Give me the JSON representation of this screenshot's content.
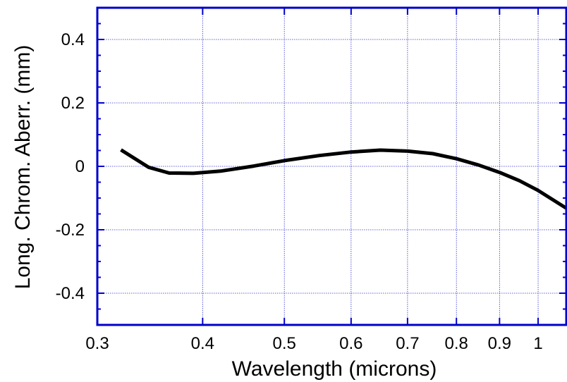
{
  "chart_data": {
    "type": "line",
    "xlabel": "Wavelength (microns)",
    "ylabel": "Long. Chrom. Aberr. (mm)",
    "x_scale": "log",
    "xlim": [
      0.3,
      1.08
    ],
    "ylim": [
      -0.5,
      0.5
    ],
    "x_ticks": [
      0.3,
      0.4,
      0.5,
      0.6,
      0.7,
      0.8,
      0.9,
      1
    ],
    "x_tick_labels": [
      "0.3",
      "0.4",
      "0.5",
      "0.6",
      "0.7",
      "0.8",
      "0.9",
      "1"
    ],
    "y_ticks": [
      -0.4,
      -0.2,
      0,
      0.2,
      0.4
    ],
    "y_tick_labels": [
      "-0.4",
      "-0.2",
      "0",
      "0.2",
      "0.4"
    ],
    "grid": true,
    "colors": {
      "frame": "#0000cc",
      "grid": "#3333cc",
      "line": "#000000"
    },
    "series": [
      {
        "x": [
          0.32,
          0.345,
          0.365,
          0.39,
          0.42,
          0.46,
          0.5,
          0.55,
          0.6,
          0.65,
          0.7,
          0.75,
          0.8,
          0.85,
          0.9,
          0.95,
          1.0,
          1.08
        ],
        "y": [
          0.052,
          -0.003,
          -0.021,
          -0.022,
          -0.015,
          0.001,
          0.018,
          0.034,
          0.045,
          0.051,
          0.048,
          0.04,
          0.024,
          0.004,
          -0.019,
          -0.045,
          -0.076,
          -0.132
        ]
      }
    ]
  }
}
